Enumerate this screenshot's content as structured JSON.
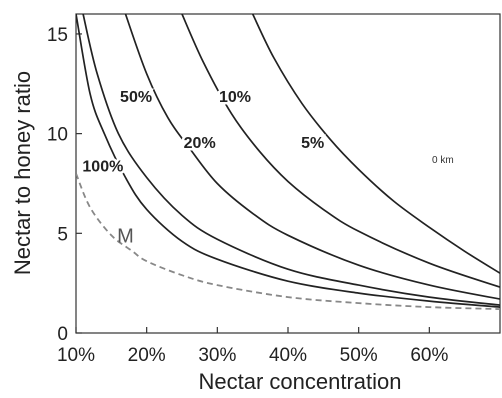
{
  "chart_data": {
    "type": "line",
    "title": "",
    "xlabel": "Nectar concentration",
    "ylabel": "Nectar to honey ratio",
    "xlim": [
      10,
      70
    ],
    "ylim": [
      0,
      16
    ],
    "x_ticks": [
      10,
      20,
      30,
      40,
      50,
      60
    ],
    "x_tick_labels": [
      "10%",
      "20%",
      "30%",
      "40%",
      "50%",
      "60%"
    ],
    "y_ticks": [
      0,
      5,
      10,
      15
    ],
    "y_tick_labels": [
      "0",
      "5",
      "10",
      "15"
    ],
    "grid": false,
    "annotation": "0 km",
    "series": [
      {
        "name": "100%",
        "style": "solid",
        "x": [
          10,
          12,
          14,
          17,
          20,
          25,
          30,
          40,
          50,
          60,
          70
        ],
        "y": [
          16,
          12,
          10,
          7.8,
          6.2,
          4.6,
          3.7,
          2.6,
          2.0,
          1.6,
          1.3
        ]
      },
      {
        "name": "50%",
        "style": "solid",
        "x": [
          11,
          13,
          16,
          20,
          25,
          30,
          40,
          50,
          60,
          70
        ],
        "y": [
          16,
          13,
          10,
          7.8,
          5.9,
          4.7,
          3.2,
          2.4,
          1.8,
          1.4
        ]
      },
      {
        "name": "20%",
        "style": "solid",
        "x": [
          17,
          20,
          23,
          26,
          30,
          35,
          40,
          50,
          60,
          70
        ],
        "y": [
          16,
          13,
          10.8,
          9.3,
          7.5,
          6.0,
          4.9,
          3.4,
          2.4,
          1.7
        ]
      },
      {
        "name": "10%",
        "style": "solid",
        "x": [
          25,
          28,
          32,
          36,
          40,
          45,
          50,
          60,
          70
        ],
        "y": [
          16,
          13.6,
          11,
          9.1,
          7.6,
          6.2,
          5.1,
          3.5,
          2.3
        ]
      },
      {
        "name": "5%",
        "style": "solid",
        "x": [
          35,
          38,
          42,
          46,
          50,
          55,
          60,
          65,
          70
        ],
        "y": [
          16,
          13.8,
          11.5,
          9.7,
          8.2,
          6.6,
          5.3,
          4.1,
          3.0
        ]
      },
      {
        "name": "M",
        "style": "dashed",
        "x": [
          10,
          12,
          15,
          18,
          20,
          25,
          30,
          40,
          50,
          60,
          70
        ],
        "y": [
          8.0,
          6.3,
          4.9,
          4.1,
          3.6,
          2.9,
          2.4,
          1.8,
          1.5,
          1.3,
          1.2
        ]
      }
    ],
    "labels": [
      {
        "text": "100%",
        "x": 13.8,
        "y": 8.3
      },
      {
        "text": "50%",
        "x": 18.5,
        "y": 11.8
      },
      {
        "text": "20%",
        "x": 27.5,
        "y": 9.5
      },
      {
        "text": "10%",
        "x": 32.5,
        "y": 11.8
      },
      {
        "text": "5%",
        "x": 43.5,
        "y": 9.5
      },
      {
        "text": "M",
        "x": 17.0,
        "y": 4.8
      }
    ]
  }
}
